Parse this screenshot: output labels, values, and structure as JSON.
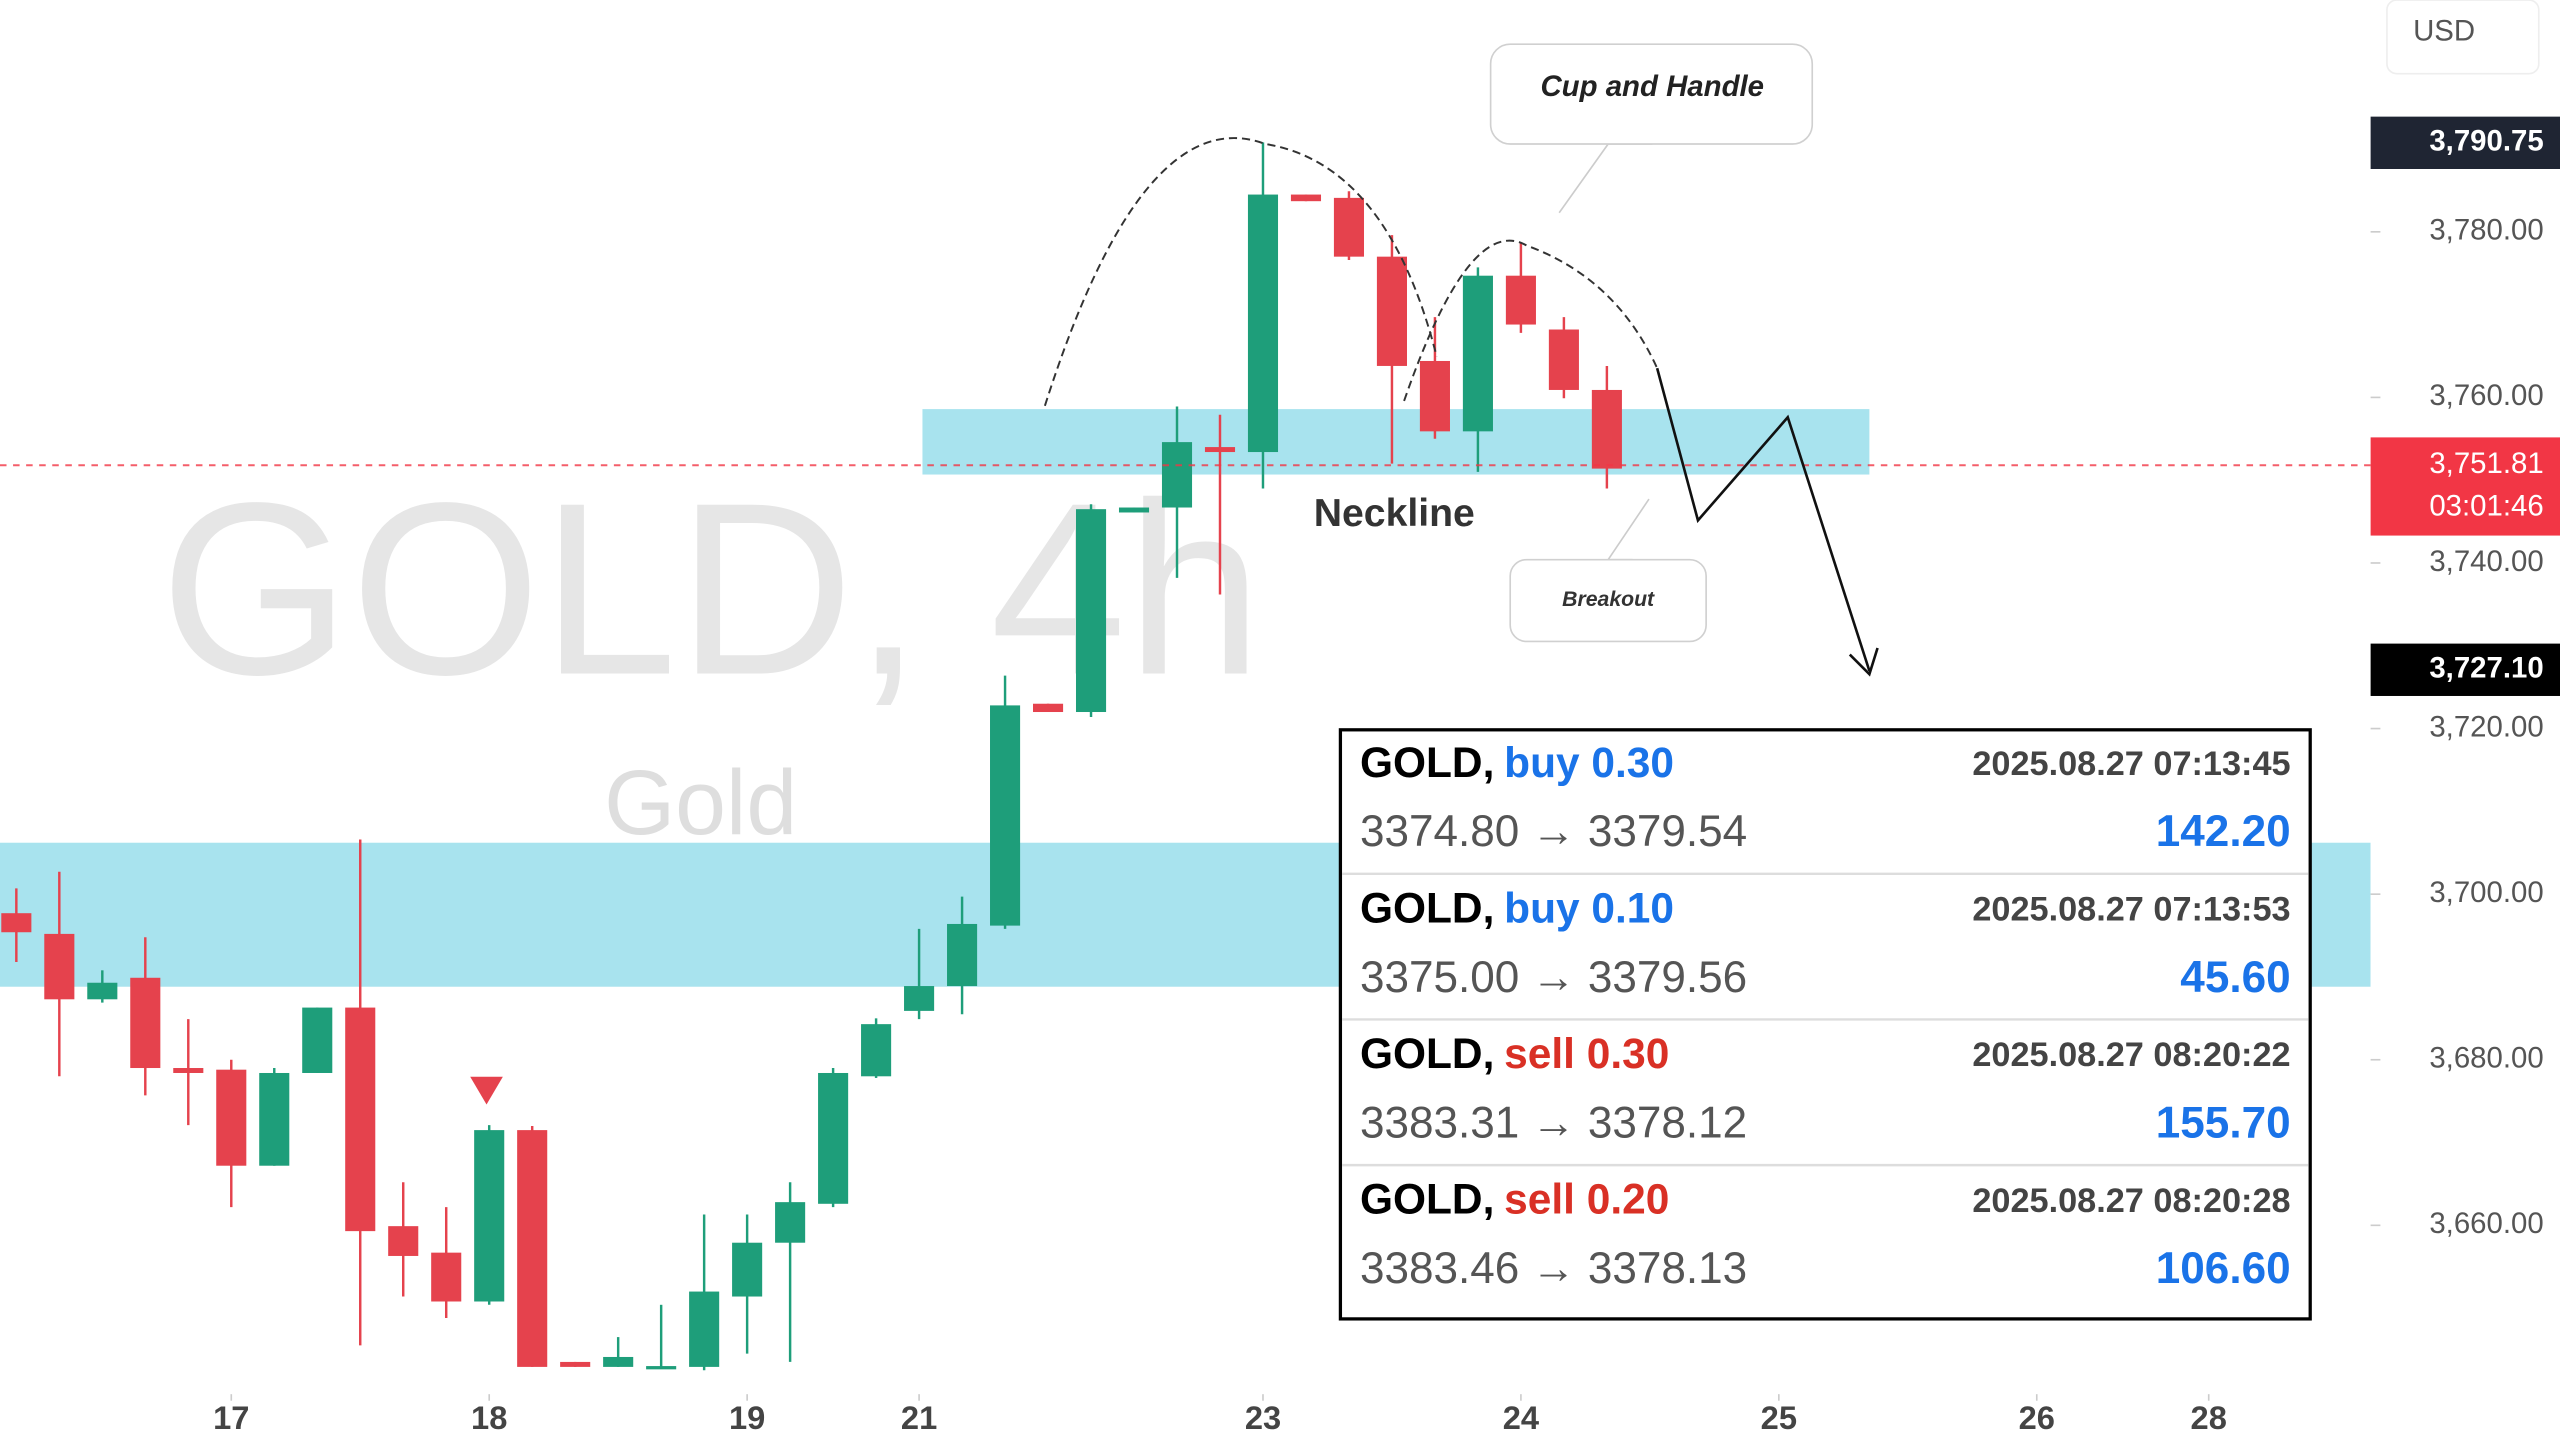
{
  "chart_data": {
    "type": "candlestick",
    "title": "GOLD, 4h",
    "subtitle": "Gold",
    "currency": "USD",
    "x": [
      0,
      1,
      2,
      3,
      4,
      5,
      6,
      7,
      8,
      9,
      10,
      11,
      12,
      13,
      14,
      15,
      16,
      17,
      18,
      19,
      20,
      21,
      22,
      23,
      24,
      25,
      26,
      27,
      28,
      29,
      30,
      31,
      32,
      33,
      34,
      35,
      36,
      37
    ],
    "open": [
      3697.7,
      3695.2,
      3687.3,
      3689.9,
      3679.0,
      3678.8,
      3667.2,
      3678.4,
      3686.3,
      3659.9,
      3656.7,
      3650.8,
      3671.5,
      3643.5,
      3642.9,
      3643.0,
      3642.9,
      3651.4,
      3657.9,
      3662.6,
      3678.0,
      3685.9,
      3688.9,
      3696.2,
      3723.0,
      3722.0,
      3746.1,
      3746.7,
      3754.0,
      3753.4,
      3784.5,
      3784.1,
      3777.0,
      3764.4,
      3755.9,
      3774.7,
      3768.2,
      3760.9
    ],
    "high": [
      3700.7,
      3702.7,
      3690.8,
      3694.8,
      3684.9,
      3680.0,
      3679.0,
      3686.3,
      3706.6,
      3665.2,
      3662.2,
      3672.1,
      3672.0,
      3643.5,
      3646.5,
      3650.4,
      3661.3,
      3661.3,
      3665.2,
      3679.0,
      3685.0,
      3695.8,
      3699.7,
      3726.4,
      3723.0,
      3747.1,
      3746.7,
      3758.9,
      3757.9,
      3790.8,
      3784.5,
      3784.9,
      3779.6,
      3769.7,
      3775.7,
      3778.6,
      3769.7,
      3763.8
    ],
    "low": [
      3691.8,
      3678.0,
      3686.9,
      3675.7,
      3672.1,
      3662.2,
      3667.2,
      3678.4,
      3645.5,
      3651.4,
      3648.8,
      3650.4,
      3642.9,
      3642.9,
      3642.9,
      3642.9,
      3642.5,
      3644.5,
      3643.5,
      3662.2,
      3677.8,
      3684.9,
      3685.5,
      3695.8,
      3722.0,
      3721.4,
      3746.1,
      3738.2,
      3736.2,
      3749.0,
      3783.7,
      3776.6,
      3752.0,
      3755.0,
      3751.0,
      3767.8,
      3759.9,
      3749.0
    ],
    "close": [
      3695.4,
      3687.3,
      3689.3,
      3679.0,
      3678.4,
      3667.2,
      3678.4,
      3686.3,
      3659.3,
      3656.3,
      3650.8,
      3671.5,
      3642.9,
      3642.9,
      3644.1,
      3643.0,
      3652.0,
      3657.9,
      3662.8,
      3678.4,
      3684.3,
      3688.9,
      3696.4,
      3722.8,
      3722.0,
      3746.5,
      3746.7,
      3754.6,
      3753.4,
      3784.5,
      3783.7,
      3777.0,
      3763.8,
      3755.9,
      3774.7,
      3768.8,
      3760.9,
      3751.4
    ],
    "up_color": "#1e9e7a",
    "down_color": "#e5424d",
    "xlim": [
      -0.38,
      54.69
    ],
    "xticks": [
      {
        "value": 5,
        "label": "17"
      },
      {
        "value": 11,
        "label": "18"
      },
      {
        "value": 17,
        "label": "19"
      },
      {
        "value": 21,
        "label": "21"
      },
      {
        "value": 29,
        "label": "23"
      },
      {
        "value": 35,
        "label": "24"
      },
      {
        "value": 41,
        "label": "25"
      },
      {
        "value": 47,
        "label": "26"
      },
      {
        "value": 51,
        "label": "28"
      }
    ],
    "ylim": [
      3640,
      3808
    ],
    "yticks": [
      {
        "value": 3660,
        "label": "3,660.00"
      },
      {
        "value": 3680,
        "label": "3,680.00"
      },
      {
        "value": 3700,
        "label": "3,700.00"
      },
      {
        "value": 3720,
        "label": "3,720.00"
      },
      {
        "value": 3740,
        "label": "3,740.00"
      },
      {
        "value": 3760,
        "label": "3,760.00"
      },
      {
        "value": 3780,
        "label": "3,780.00"
      }
    ],
    "price_labels": [
      {
        "value": 3790.75,
        "label": "3,790.75",
        "color": "#1f2533"
      },
      {
        "value": 3751.81,
        "label": "3,751.81",
        "timer": "03:01:46",
        "color": "#f23645"
      },
      {
        "value": 3727.1,
        "label": "3,727.10",
        "color": "#000000"
      }
    ],
    "annotations": {
      "pattern": "Cup and Handle",
      "neckline": "Neckline",
      "breakout": "Breakout"
    }
  },
  "trades": [
    {
      "symbol": "GOLD,",
      "side": "buy 0.30",
      "side_color": "#1a73e8",
      "time": "2025.08.27 07:13:45",
      "prices": "3374.80 → 3379.54",
      "profit": "142.20"
    },
    {
      "symbol": "GOLD,",
      "side": "buy 0.10",
      "side_color": "#1a73e8",
      "time": "2025.08.27 07:13:53",
      "prices": "3375.00 → 3379.56",
      "profit": "45.60"
    },
    {
      "symbol": "GOLD,",
      "side": "sell 0.30",
      "side_color": "#d93025",
      "time": "2025.08.27 08:20:22",
      "prices": "3383.31 → 3378.12",
      "profit": "155.70"
    },
    {
      "symbol": "GOLD,",
      "side": "sell 0.20",
      "side_color": "#d93025",
      "time": "2025.08.27 08:20:28",
      "prices": "3383.46 → 3378.13",
      "profit": "106.60"
    }
  ]
}
